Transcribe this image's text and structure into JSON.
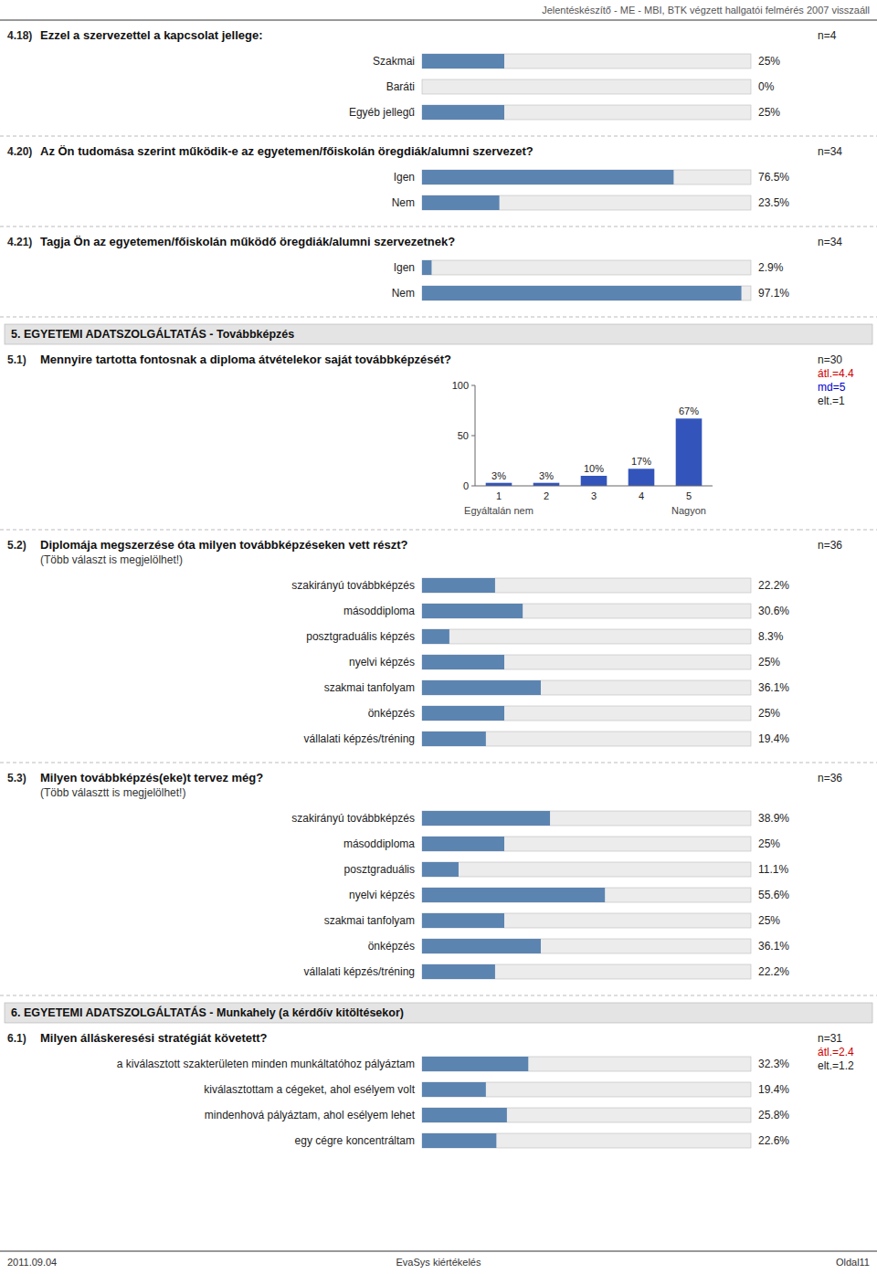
{
  "header": "Jelentéskészítő - ME - MBI, BTK végzett hallgatói felmérés 2007 visszaáll",
  "footer": [
    "2011.09.04",
    "EvaSys kiértékelés",
    "Oldal11"
  ],
  "chart_data": [
    {
      "type": "bar",
      "orientation": "horizontal",
      "number": "4.18)",
      "title": "Ezzel a szervezettel a kapcsolat jellege:",
      "annotations": [
        {
          "text": "n=4"
        }
      ],
      "categories": [
        "Szakmai",
        "Baráti",
        "Egyéb jellegű"
      ],
      "values": [
        25.0,
        0.0,
        25.0
      ],
      "value_labels": [
        "25%",
        "0%",
        "25%"
      ],
      "data_labels": true,
      "xlim": [
        0,
        100
      ],
      "tick_labels": false
    },
    {
      "type": "bar",
      "orientation": "horizontal",
      "number": "4.20)",
      "title": "Az Ön tudomása szerint működik-e az egyetemen/főiskolán öregdiák/alumni szervezet?",
      "annotations": [
        {
          "text": "n=34"
        }
      ],
      "categories": [
        "Igen",
        "Nem"
      ],
      "values": [
        76.5,
        23.5
      ],
      "value_labels": [
        "76.5%",
        "23.5%"
      ],
      "data_labels": true,
      "xlim": [
        0,
        100
      ],
      "tick_labels": false
    },
    {
      "type": "bar",
      "orientation": "horizontal",
      "number": "4.21)",
      "title": "Tagja Ön az egyetemen/főiskolán működő öregdiák/alumni szervezetnek?",
      "annotations": [
        {
          "text": "n=34"
        }
      ],
      "categories": [
        "Igen",
        "Nem"
      ],
      "values": [
        2.9,
        97.1
      ],
      "value_labels": [
        "2.9%",
        "97.1%"
      ],
      "data_labels": true,
      "xlim": [
        0,
        100
      ],
      "tick_labels": false
    },
    {
      "type": "bar",
      "section": "5. EGYETEMI ADATSZOLGÁLTATÁS - Továbbképzés",
      "number": "5.1)",
      "title": "Mennyire tartotta fontosnak a diploma átvételekor saját továbbképzését?",
      "annotations": [
        {
          "text": "n=30"
        },
        {
          "text": "átl.=4.4",
          "color": "#cc0000"
        },
        {
          "text": "md=5",
          "color": "#0000cc"
        },
        {
          "text": "elt.=1"
        }
      ],
      "scale_labels": [
        "Egyáltalán nem",
        "Nagyon"
      ],
      "categories": [
        "1",
        "2",
        "3",
        "4",
        "5"
      ],
      "values": [
        3,
        3,
        10,
        17,
        67
      ],
      "value_labels": [
        "3%",
        "3%",
        "10%",
        "17%",
        "67%"
      ],
      "data_labels": true,
      "color": "#3355bb",
      "ylim": [
        0,
        100
      ],
      "yticks": [
        0,
        50,
        100
      ]
    },
    {
      "type": "bar",
      "orientation": "horizontal",
      "number": "5.2)",
      "title": "Diplomája megszerzése óta milyen továbbképzéseken vett részt?",
      "subtitle": "(Több választ is megjelölhet!)",
      "annotations": [
        {
          "text": "n=36"
        }
      ],
      "categories": [
        "szakirányú továbbképzés",
        "másoddiploma",
        "posztgraduális képzés",
        "nyelvi képzés",
        "szakmai tanfolyam",
        "önképzés",
        "vállalati képzés/tréning"
      ],
      "values": [
        22.2,
        30.6,
        8.3,
        25.0,
        36.1,
        25.0,
        19.4
      ],
      "value_labels": [
        "22.2%",
        "30.6%",
        "8.3%",
        "25%",
        "36.1%",
        "25%",
        "19.4%"
      ],
      "data_labels": true,
      "xlim": [
        0,
        100
      ],
      "tick_labels": false
    },
    {
      "type": "bar",
      "orientation": "horizontal",
      "number": "5.3)",
      "title": "Milyen továbbképzés(eke)t tervez még?",
      "subtitle": "(Több választt is megjelölhet!)",
      "annotations": [
        {
          "text": "n=36"
        }
      ],
      "categories": [
        "szakirányú továbbképzés",
        "másoddiploma",
        "posztgraduális",
        "nyelvi képzés",
        "szakmai tanfolyam",
        "önképzés",
        "vállalati képzés/tréning"
      ],
      "values": [
        38.9,
        25.0,
        11.1,
        55.6,
        25.0,
        36.1,
        22.2
      ],
      "value_labels": [
        "38.9%",
        "25%",
        "11.1%",
        "55.6%",
        "25%",
        "36.1%",
        "22.2%"
      ],
      "data_labels": true,
      "xlim": [
        0,
        100
      ],
      "tick_labels": false
    },
    {
      "type": "bar",
      "orientation": "horizontal",
      "section": "6. EGYETEMI ADATSZOLGÁLTATÁS - Munkahely (a kérdőív kitöltésekor)",
      "number": "6.1)",
      "title": "Milyen álláskeresési stratégiát követett?",
      "annotations": [
        {
          "text": "n=31"
        },
        {
          "text": "átl.=2.4",
          "color": "#cc0000"
        },
        {
          "text": "elt.=1.2"
        }
      ],
      "categories": [
        "a kiválasztott szakterületen minden munkáltatóhoz pályáztam",
        "kiválasztottam a cégeket, ahol esélyem volt",
        "mindenhová pályáztam, ahol esélyem lehet",
        "egy cégre koncentráltam"
      ],
      "values": [
        32.3,
        19.4,
        25.8,
        22.6
      ],
      "value_labels": [
        "32.3%",
        "19.4%",
        "25.8%",
        "22.6%"
      ],
      "data_labels": true,
      "xlim": [
        0,
        100
      ],
      "tick_labels": false
    }
  ]
}
